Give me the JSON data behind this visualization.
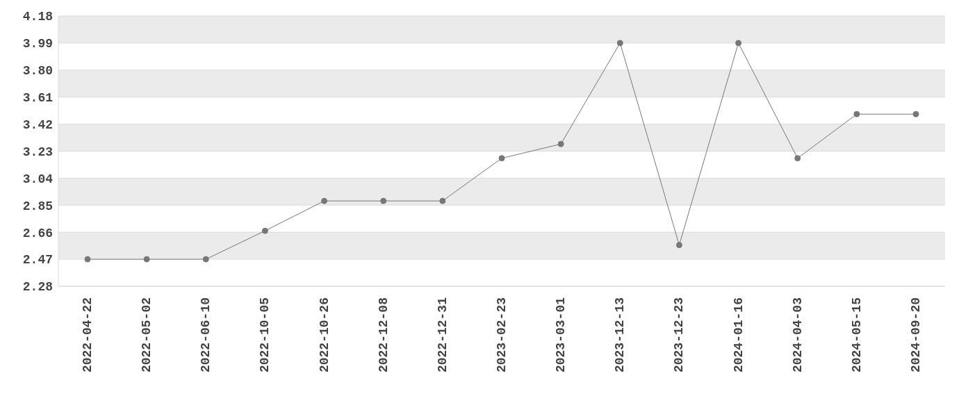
{
  "chart_data": {
    "type": "line",
    "categories": [
      "2022-04-22",
      "2022-05-02",
      "2022-06-10",
      "2022-10-05",
      "2022-10-26",
      "2022-12-08",
      "2022-12-31",
      "2023-02-23",
      "2023-03-01",
      "2023-12-13",
      "2023-12-23",
      "2024-01-16",
      "2024-04-03",
      "2024-05-15",
      "2024-09-20"
    ],
    "values": [
      2.47,
      2.47,
      2.47,
      2.67,
      2.88,
      2.88,
      2.88,
      3.18,
      3.28,
      3.99,
      2.57,
      3.99,
      3.18,
      3.49,
      3.49
    ],
    "color": "#777777",
    "ylim": [
      2.28,
      4.18
    ],
    "yticks": [
      2.28,
      2.47,
      2.66,
      2.85,
      3.04,
      3.23,
      3.42,
      3.61,
      {
        "value": 3.8,
        "label": "3.80"
      },
      3.99,
      4.18
    ],
    "grid": "y",
    "marker": "circle",
    "line_style": "solid"
  }
}
